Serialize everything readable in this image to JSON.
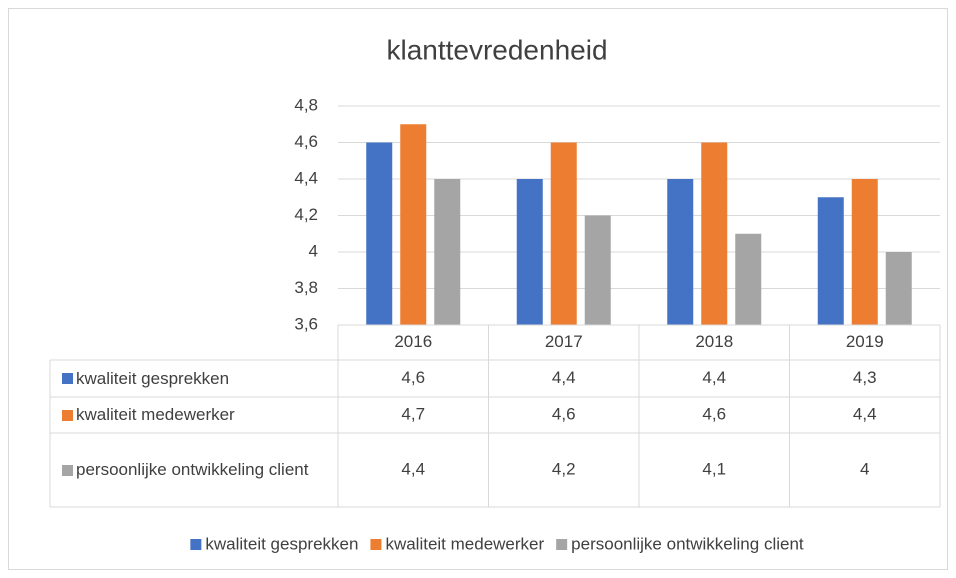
{
  "chart_data": {
    "type": "bar",
    "title": "klanttevredenheid",
    "categories": [
      "2016",
      "2017",
      "2018",
      "2019"
    ],
    "series": [
      {
        "name": "kwaliteit gesprekken",
        "color": "#4472c4",
        "values": [
          4.6,
          4.4,
          4.4,
          4.3
        ],
        "value_labels": [
          "4,6",
          "4,4",
          "4,4",
          "4,3"
        ]
      },
      {
        "name": "kwaliteit medewerker",
        "color": "#ed7d31",
        "values": [
          4.7,
          4.6,
          4.6,
          4.4
        ],
        "value_labels": [
          "4,7",
          "4,6",
          "4,6",
          "4,4"
        ]
      },
      {
        "name": "persoonlijke ontwikkeling client",
        "color": "#a5a5a5",
        "values": [
          4.4,
          4.2,
          4.1,
          4
        ],
        "value_labels": [
          "4,4",
          "4,2",
          "4,1",
          "4"
        ]
      }
    ],
    "ylim": [
      3.6,
      4.8
    ],
    "yticks": [
      {
        "value": 3.6,
        "label": "3,6"
      },
      {
        "value": 3.8,
        "label": "3,8"
      },
      4,
      {
        "value": 4.2,
        "label": "4,2"
      },
      {
        "value": 4.4,
        "label": "4,4"
      },
      {
        "value": 4.6,
        "label": "4,6"
      },
      {
        "value": 4.8,
        "label": "4,8"
      }
    ],
    "grid": true,
    "legend": "bottom"
  }
}
